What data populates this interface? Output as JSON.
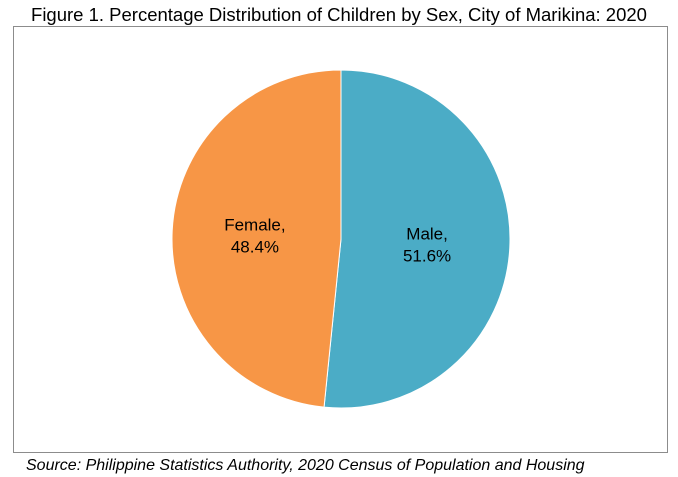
{
  "chart_data": {
    "type": "pie",
    "title": "Figure 1. Percentage Distribution of Children by Sex, City of Marikina: 2020",
    "slices": [
      {
        "label": "Male",
        "value": 51.6,
        "display": "51.6%",
        "color": "#4bacc6"
      },
      {
        "label": "Female",
        "value": 48.4,
        "display": "48.4%",
        "color": "#f79646"
      }
    ],
    "source": "Source: Philippine Statistics Authority, 2020 Census of Population and Housing",
    "start_angle": "12 o'clock",
    "direction": "clockwise"
  }
}
